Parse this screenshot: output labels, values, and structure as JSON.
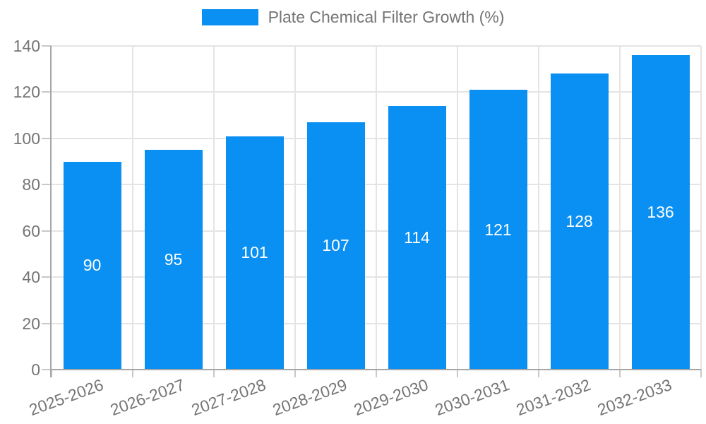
{
  "chart_data": {
    "type": "bar",
    "title": "Plate Chemical Filter Growth (%)",
    "legend": {
      "position": "top",
      "entries": [
        "Plate Chemical Filter Growth (%)"
      ]
    },
    "categories": [
      "2025-2026",
      "2026-2027",
      "2027-2028",
      "2028-2029",
      "2029-2030",
      "2030-2031",
      "2031-2032",
      "2032-2033"
    ],
    "values": [
      90,
      95,
      101,
      107,
      114,
      121,
      128,
      136
    ],
    "xlabel": "",
    "ylabel": "",
    "ylim": [
      0,
      140
    ],
    "yticks": [
      0,
      20,
      40,
      60,
      80,
      100,
      120,
      140
    ],
    "grid": true,
    "value_labels_position": "inside-center",
    "x_label_rotation_deg": -20,
    "colors": {
      "bar": "#0A8FF2",
      "value_label": "#FFFFFF",
      "axis": "#A6A6A6",
      "grid": "#E4E4E4",
      "tick": "#C8C8C8",
      "text": "#757575",
      "background": "#FFFFFF"
    }
  }
}
